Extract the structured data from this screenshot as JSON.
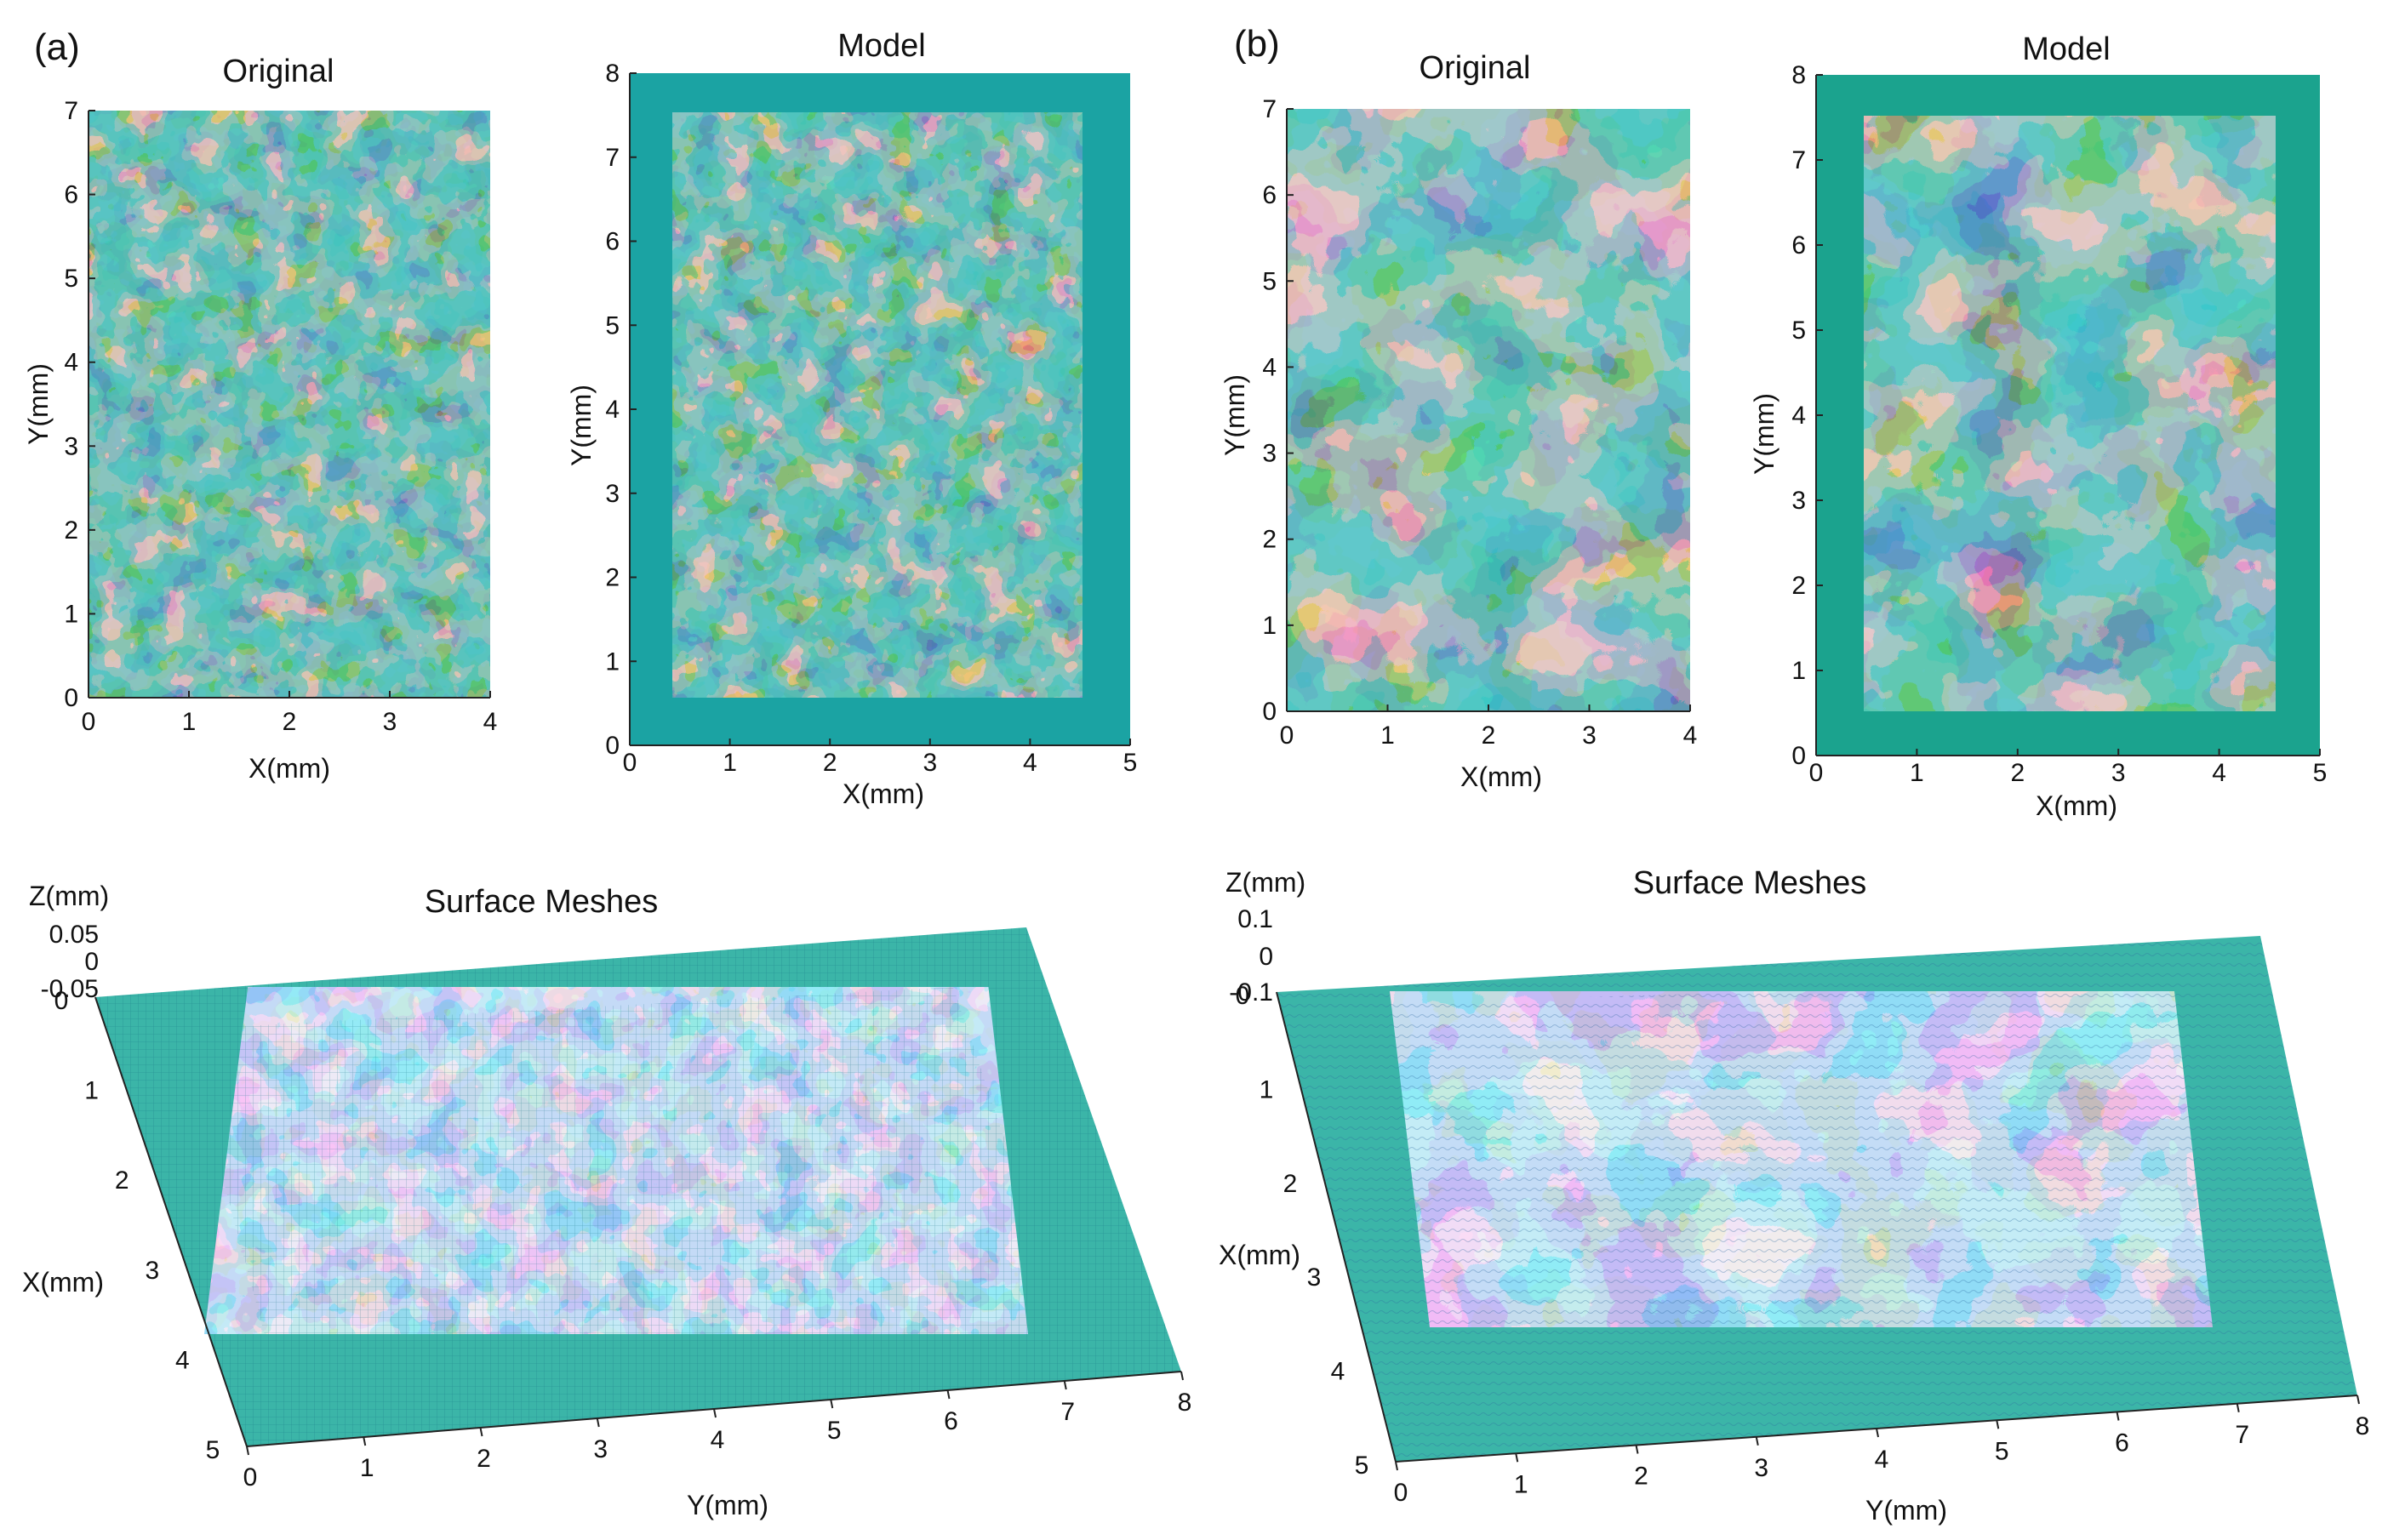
{
  "panel_labels": {
    "a": "(a)",
    "b": "(b)"
  },
  "colors": {
    "surface_teal": "#1f9b9b",
    "peak_gold": "#d6a23a",
    "valley_navy": "#14306e",
    "mesh_blue": "#4a76c8",
    "model_frame": "#1aa3a3",
    "mesh_base": "#3bb5a8"
  },
  "chart_data": [
    {
      "id": "a-original",
      "type": "heatmap",
      "title": "Original",
      "xlabel": "X(mm)",
      "ylabel": "Y(mm)",
      "xlim": [
        0,
        4
      ],
      "ylim": [
        0,
        7
      ],
      "xticks": [
        "0",
        "1",
        "2",
        "3",
        "4"
      ],
      "yticks": [
        "0",
        "1",
        "2",
        "3",
        "4",
        "5",
        "6",
        "7"
      ]
    },
    {
      "id": "a-model",
      "type": "heatmap",
      "title": "Model",
      "xlabel": "X(mm)",
      "ylabel": "Y(mm)",
      "xlim": [
        0,
        5
      ],
      "ylim": [
        0,
        8
      ],
      "xticks": [
        "0",
        "1",
        "2",
        "3",
        "4",
        "5"
      ],
      "yticks": [
        "0",
        "1",
        "2",
        "3",
        "4",
        "5",
        "6",
        "7",
        "8"
      ]
    },
    {
      "id": "b-original",
      "type": "heatmap",
      "title": "Original",
      "xlabel": "X(mm)",
      "ylabel": "Y(mm)",
      "xlim": [
        0,
        4
      ],
      "ylim": [
        0,
        7
      ],
      "xticks": [
        "0",
        "1",
        "2",
        "3",
        "4"
      ],
      "yticks": [
        "0",
        "1",
        "2",
        "3",
        "4",
        "5",
        "6",
        "7"
      ]
    },
    {
      "id": "b-model",
      "type": "heatmap",
      "title": "Model",
      "xlabel": "X(mm)",
      "ylabel": "Y(mm)",
      "xlim": [
        0,
        5
      ],
      "ylim": [
        0,
        8
      ],
      "xticks": [
        "0",
        "1",
        "2",
        "3",
        "4",
        "5"
      ],
      "yticks": [
        "0",
        "1",
        "2",
        "3",
        "4",
        "5",
        "6",
        "7",
        "8"
      ]
    },
    {
      "id": "a-mesh",
      "type": "surface",
      "title": "Surface Meshes",
      "xlabel": "X(mm)",
      "ylabel": "Y(mm)",
      "zlabel": "Z(mm)",
      "xticks": [
        "0",
        "1",
        "2",
        "3",
        "4",
        "5"
      ],
      "yticks": [
        "0",
        "1",
        "2",
        "3",
        "4",
        "5",
        "6",
        "7",
        "8"
      ],
      "zticks": [
        "0.05",
        "0",
        "-0.05"
      ]
    },
    {
      "id": "b-mesh",
      "type": "surface",
      "title": "Surface Meshes",
      "xlabel": "X(mm)",
      "ylabel": "Y(mm)",
      "zlabel": "Z(mm)",
      "xticks": [
        "0",
        "1",
        "2",
        "3",
        "4",
        "5"
      ],
      "yticks": [
        "0",
        "1",
        "2",
        "3",
        "4",
        "5",
        "6",
        "7",
        "8"
      ],
      "zticks": [
        "0.1",
        "0",
        "-0.1"
      ]
    }
  ]
}
